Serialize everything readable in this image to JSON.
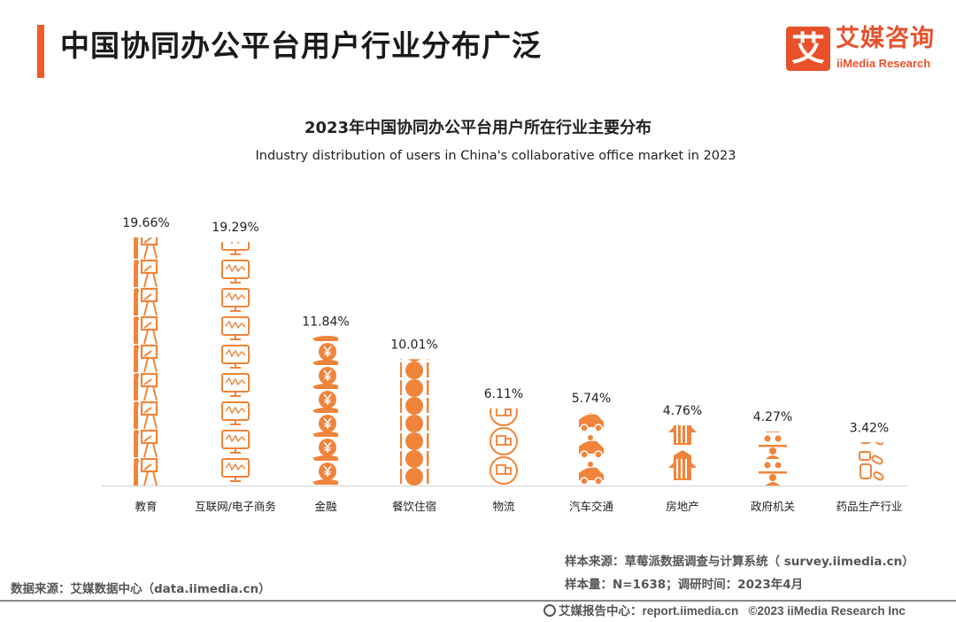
{
  "header": {
    "title": "中国协同办公平台用户行业分布广泛",
    "accent_color": "#f05a28"
  },
  "logo": {
    "mark": "艾",
    "name_cn": "艾媒咨询",
    "name_en": "iiMedia Research",
    "color": "#e8512a"
  },
  "chart_data": {
    "type": "bar",
    "style": "pictogram",
    "title": "2023年中国协同办公平台用户所在行业主要分布",
    "subtitle": "Industry distribution of users in China's collaborative office market in 2023",
    "categories": [
      "教育",
      "互联网/电子商务",
      "金融",
      "餐饮住宿",
      "物流",
      "汽车交通",
      "房地产",
      "政府机关",
      "药品生产行业"
    ],
    "values": [
      19.66,
      19.29,
      11.84,
      10.01,
      6.11,
      5.74,
      4.76,
      4.27,
      3.42
    ],
    "data_labels": [
      "19.66%",
      "19.29%",
      "11.84%",
      "10.01%",
      "6.11%",
      "5.74%",
      "4.76%",
      "4.27%",
      "3.42%"
    ],
    "icons": [
      "teacher-blackboard-icon",
      "monitor-chart-icon",
      "hand-yuan-coin-icon",
      "plate-fork-knife-icon",
      "delivery-truck-icon",
      "car-driver-icon",
      "building-icon",
      "meeting-people-icon",
      "medicine-pills-icon"
    ],
    "unit": "%",
    "ylim": [
      0,
      20
    ],
    "grid": false,
    "color": "#f0843a"
  },
  "footer": {
    "data_source": "数据来源：艾媒数据中心（data.iimedia.cn）",
    "sample_source": "样本来源：草莓派数据调查与计算系统（ survey.iimedia.cn）",
    "sample_size": "样本量：N=1638；调研时间：2023年4月",
    "report_center": "艾媒报告中心：report.iimedia.cn",
    "copyright": "©2023  iiMedia Research  Inc"
  }
}
